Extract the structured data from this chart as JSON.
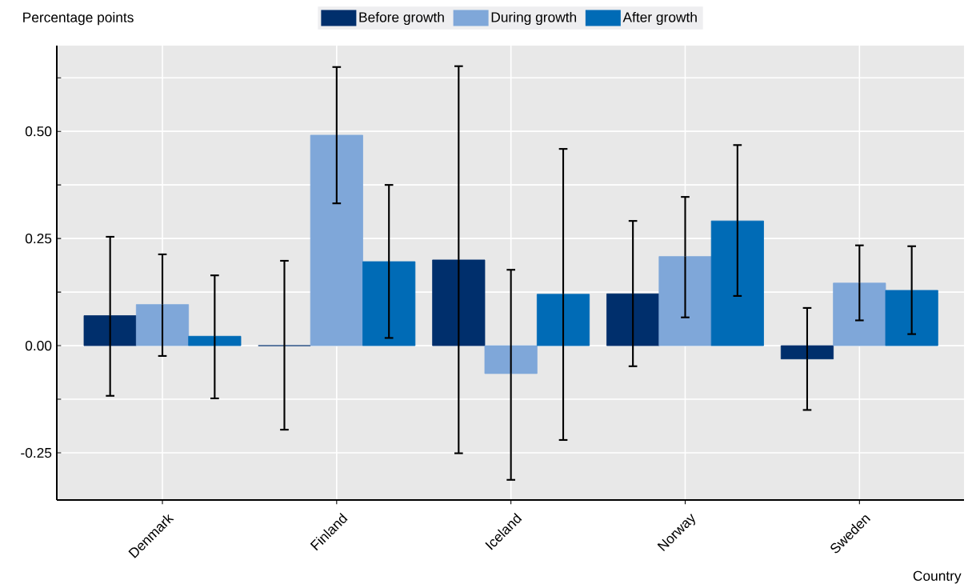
{
  "chart_data": {
    "type": "bar",
    "ylabel": "Percentage points",
    "xlabel": "Country",
    "categories": [
      "Denmark",
      "Finland",
      "Iceland",
      "Norway",
      "Sweden"
    ],
    "series": [
      {
        "name": "Before growth",
        "color": "#002f6c",
        "values": [
          0.07,
          0.0,
          0.2,
          0.121,
          -0.031
        ],
        "errors": [
          [
            -0.117,
            0.254
          ],
          [
            -0.196,
            0.198
          ],
          [
            -0.251,
            0.652
          ],
          [
            -0.048,
            0.291
          ],
          [
            -0.15,
            0.088
          ]
        ]
      },
      {
        "name": "During growth",
        "color": "#7fa7d9",
        "values": [
          0.096,
          0.491,
          -0.065,
          0.208,
          0.146
        ],
        "errors": [
          [
            -0.024,
            0.213
          ],
          [
            0.332,
            0.65
          ],
          [
            -0.313,
            0.177
          ],
          [
            0.066,
            0.347
          ],
          [
            0.059,
            0.234
          ]
        ]
      },
      {
        "name": "After growth",
        "color": "#006bb6",
        "values": [
          0.022,
          0.196,
          0.12,
          0.291,
          0.129
        ],
        "errors": [
          [
            -0.123,
            0.164
          ],
          [
            0.018,
            0.375
          ],
          [
            -0.22,
            0.459
          ],
          [
            0.116,
            0.468
          ],
          [
            0.027,
            0.232
          ]
        ]
      }
    ],
    "ylim": [
      -0.36,
      0.7
    ],
    "yticks": [
      {
        "value": -0.25,
        "label": "-0.25"
      },
      {
        "value": -0.125,
        "label": null
      },
      {
        "value": 0,
        "label": "0.00"
      },
      {
        "value": 0.125,
        "label": null
      },
      {
        "value": 0.25,
        "label": "0.25"
      },
      {
        "value": 0.375,
        "label": null
      },
      {
        "value": 0.5,
        "label": "0.50"
      },
      {
        "value": 0.625,
        "label": null
      }
    ],
    "grid": true,
    "legend": "top"
  }
}
